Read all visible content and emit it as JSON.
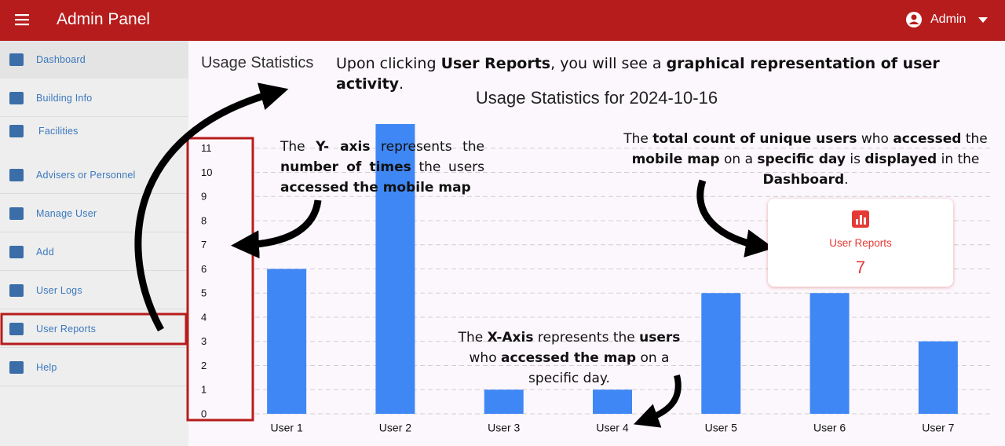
{
  "header": {
    "title": "Admin Panel",
    "user": "Admin"
  },
  "sidebar": {
    "items": [
      "Dashboard",
      "Building Info",
      "Facilities",
      "Advisers or Personnel",
      "Manage User",
      "Add",
      "User Logs",
      "User Reports",
      "Help"
    ]
  },
  "page": {
    "heading": "Usage Statistics"
  },
  "annotations": [
    {
      "segments": [
        {
          "text": "Upon clicking ",
          "bold": false
        },
        {
          "text": "User Reports",
          "bold": true
        },
        {
          "text": ", you will see a ",
          "bold": false
        },
        {
          "text": "graphical representation of user activity",
          "bold": true
        },
        {
          "text": ".",
          "bold": false
        }
      ]
    },
    {
      "segments": [
        {
          "text": "The ",
          "bold": false
        },
        {
          "text": "Y- axis",
          "bold": true
        },
        {
          "text": " represents the ",
          "bold": false
        },
        {
          "text": "number of times",
          "bold": true
        },
        {
          "text": " the users ",
          "bold": false
        },
        {
          "text": "accessed the mobile map",
          "bold": true
        }
      ]
    },
    {
      "segments": [
        {
          "text": "The ",
          "bold": false
        },
        {
          "text": "total count of unique users",
          "bold": true
        },
        {
          "text": " who ",
          "bold": false
        },
        {
          "text": "accessed",
          "bold": true
        },
        {
          "text": " the ",
          "bold": false
        },
        {
          "text": "mobile map",
          "bold": true
        },
        {
          "text": " on a ",
          "bold": false
        },
        {
          "text": "specific day",
          "bold": true
        },
        {
          "text": " is ",
          "bold": false
        },
        {
          "text": "displayed",
          "bold": true
        },
        {
          "text": " in the ",
          "bold": false
        },
        {
          "text": "Dashboard",
          "bold": true
        },
        {
          "text": ".",
          "bold": false
        }
      ]
    },
    {
      "segments": [
        {
          "text": "The ",
          "bold": false
        },
        {
          "text": "X-Axis",
          "bold": true
        },
        {
          "text": " represents the ",
          "bold": false
        },
        {
          "text": "users",
          "bold": true
        },
        {
          "text": " who ",
          "bold": false
        },
        {
          "text": "accessed the map",
          "bold": true
        },
        {
          "text": " on a specific day.",
          "bold": false
        }
      ]
    }
  ],
  "card": {
    "label": "User Reports",
    "value": 7
  },
  "chart_data": {
    "type": "bar",
    "title": "Usage Statistics for 2024-10-16",
    "categories": [
      "User 1",
      "User 2",
      "User 3",
      "User 4",
      "User 5",
      "User 6",
      "User 7"
    ],
    "values": [
      6,
      12,
      1,
      1,
      5,
      5,
      3
    ],
    "color": "#3f87f5",
    "ylim": [
      0,
      12
    ],
    "yticks": [
      0,
      1,
      2,
      3,
      4,
      5,
      6,
      7,
      8,
      9,
      10,
      11
    ],
    "grid": true
  }
}
